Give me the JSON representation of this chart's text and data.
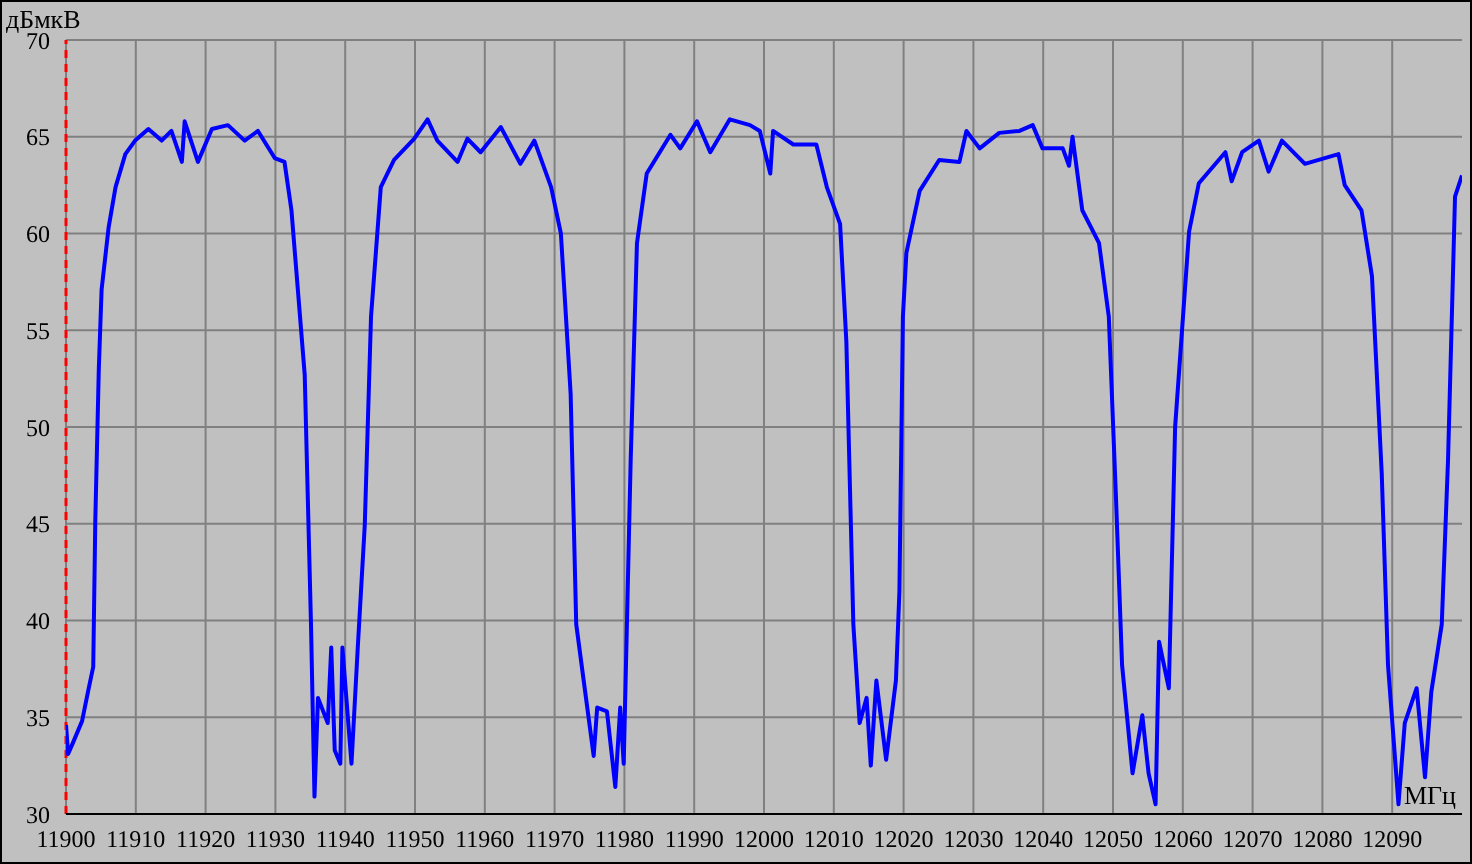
{
  "chart_data": {
    "type": "line",
    "xlabel": "МГц",
    "ylabel": "дБмкВ",
    "xlim": [
      11900,
      12100
    ],
    "xticks": [
      11900,
      11910,
      11920,
      11930,
      11940,
      11950,
      11960,
      11970,
      11980,
      11990,
      12000,
      12010,
      12020,
      12030,
      12040,
      12050,
      12060,
      12070,
      12080,
      12090
    ],
    "ylim": [
      30,
      70
    ],
    "yticks": [
      30,
      35,
      40,
      45,
      50,
      55,
      60,
      65,
      70
    ],
    "grid": true,
    "marker": "none",
    "line_style": "solid",
    "ref_lines": [
      {
        "axis": "x",
        "value": 11900,
        "color": "#ff0000",
        "line_style": "dashed"
      }
    ],
    "series": [
      {
        "color": "#0000ff",
        "x": [
          11900,
          11900.3,
          11900.9,
          11902.3,
          11903.2,
          11903.9,
          11904.2,
          11904.7,
          11905.1,
          11906.1,
          11907.1,
          11908.5,
          11909.9,
          11911.8,
          11913.7,
          11915.1,
          11916.6,
          11917,
          11918.9,
          11920.9,
          11923.2,
          11925.6,
          11927.5,
          11929.9,
          11931.3,
          11932.3,
          11934.2,
          11935.1,
          11935.6,
          11936.1,
          11937.5,
          11938,
          11938.5,
          11939.3,
          11939.6,
          11940.9,
          11941.8,
          11942.8,
          11943.7,
          11945.1,
          11947,
          11949.9,
          11951.8,
          11953.2,
          11956.1,
          11957.5,
          11959.4,
          11962.3,
          11965.1,
          11967.1,
          11969.5,
          11970.9,
          11972.3,
          11973.1,
          11975.6,
          11976.1,
          11977.5,
          11978.7,
          11979.4,
          11979.9,
          11980.9,
          11981.8,
          11983.2,
          11986.6,
          11988,
          11990.4,
          11992.3,
          11995.1,
          11998,
          11999.4,
          12000.9,
          12001.3,
          12004.2,
          12007.5,
          12009,
          12010.9,
          12011.8,
          12012.8,
          12013.7,
          12014.7,
          12015.3,
          12016.1,
          12017.5,
          12018.9,
          12019.4,
          12019.9,
          12020.4,
          12022.3,
          12025.1,
          12028,
          12029,
          12030.9,
          12033.7,
          12036.6,
          12038.5,
          12039.9,
          12042.8,
          12043.7,
          12044.2,
          12045.6,
          12048,
          12049.4,
          12050.4,
          12051.3,
          12052.8,
          12054.2,
          12055.1,
          12056.1,
          12056.6,
          12058,
          12058.9,
          12060.9,
          12062.3,
          12066.1,
          12067,
          12068.5,
          12070.9,
          12072.3,
          12074.2,
          12077.5,
          12082.3,
          12083.2,
          12085.6,
          12087.1,
          12088.5,
          12089.4,
          12090.9,
          12091.8,
          12093.5,
          12094.7,
          12095.6,
          12097.1,
          12098,
          12099,
          12100
        ],
        "values": [
          34.6,
          33.1,
          33.6,
          34.8,
          36.4,
          37.6,
          45.2,
          53,
          57.1,
          60.3,
          62.4,
          64.1,
          64.8,
          65.4,
          64.8,
          65.3,
          63.7,
          65.8,
          63.7,
          65.4,
          65.6,
          64.8,
          65.3,
          63.9,
          63.7,
          61.2,
          52.7,
          39.8,
          30.9,
          36,
          34.7,
          38.6,
          33.3,
          32.6,
          38.6,
          32.6,
          38.6,
          44.9,
          55.7,
          62.4,
          63.8,
          64.9,
          65.9,
          64.8,
          63.7,
          64.9,
          64.2,
          65.5,
          63.6,
          64.8,
          62.4,
          60,
          51.7,
          39.8,
          33,
          35.5,
          35.3,
          31.4,
          35.5,
          32.6,
          48.3,
          59.5,
          63.1,
          65.1,
          64.4,
          65.8,
          64.2,
          65.9,
          65.6,
          65.3,
          63.1,
          65.3,
          64.6,
          64.6,
          62.4,
          60.5,
          54.4,
          39.8,
          34.7,
          36,
          32.5,
          36.9,
          32.8,
          36.9,
          41.5,
          55.7,
          59,
          62.2,
          63.8,
          63.7,
          65.3,
          64.4,
          65.2,
          65.3,
          65.6,
          64.4,
          64.4,
          63.5,
          65,
          61.2,
          59.5,
          55.7,
          46.6,
          37.7,
          32.1,
          35.1,
          32.1,
          30.5,
          38.9,
          36.5,
          50,
          60.1,
          62.6,
          64.2,
          62.7,
          64.2,
          64.8,
          63.2,
          64.8,
          63.6,
          64.1,
          62.5,
          61.2,
          57.8,
          47.6,
          37.7,
          30.5,
          34.7,
          36.5,
          31.9,
          36.3,
          39.8,
          48.3,
          61.9,
          63
        ]
      }
    ]
  }
}
